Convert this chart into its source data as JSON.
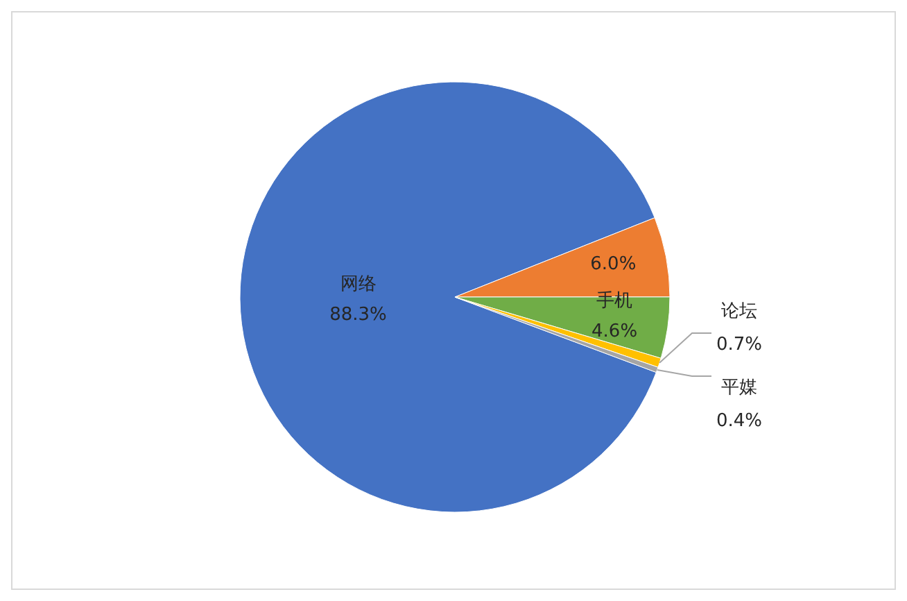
{
  "chart_data": {
    "type": "pie",
    "categories": [
      "网络",
      null,
      "手机",
      "论坛",
      "平媒"
    ],
    "values": [
      88.3,
      6.0,
      4.6,
      0.7,
      0.4
    ],
    "colors": [
      "#4472c4",
      "#ed7d31",
      "#70ad47",
      "#ffc000",
      "#a5a5a5"
    ],
    "value_labels": [
      "88.3%",
      "6.0%",
      "4.6%",
      "0.7%",
      "0.4%"
    ]
  }
}
